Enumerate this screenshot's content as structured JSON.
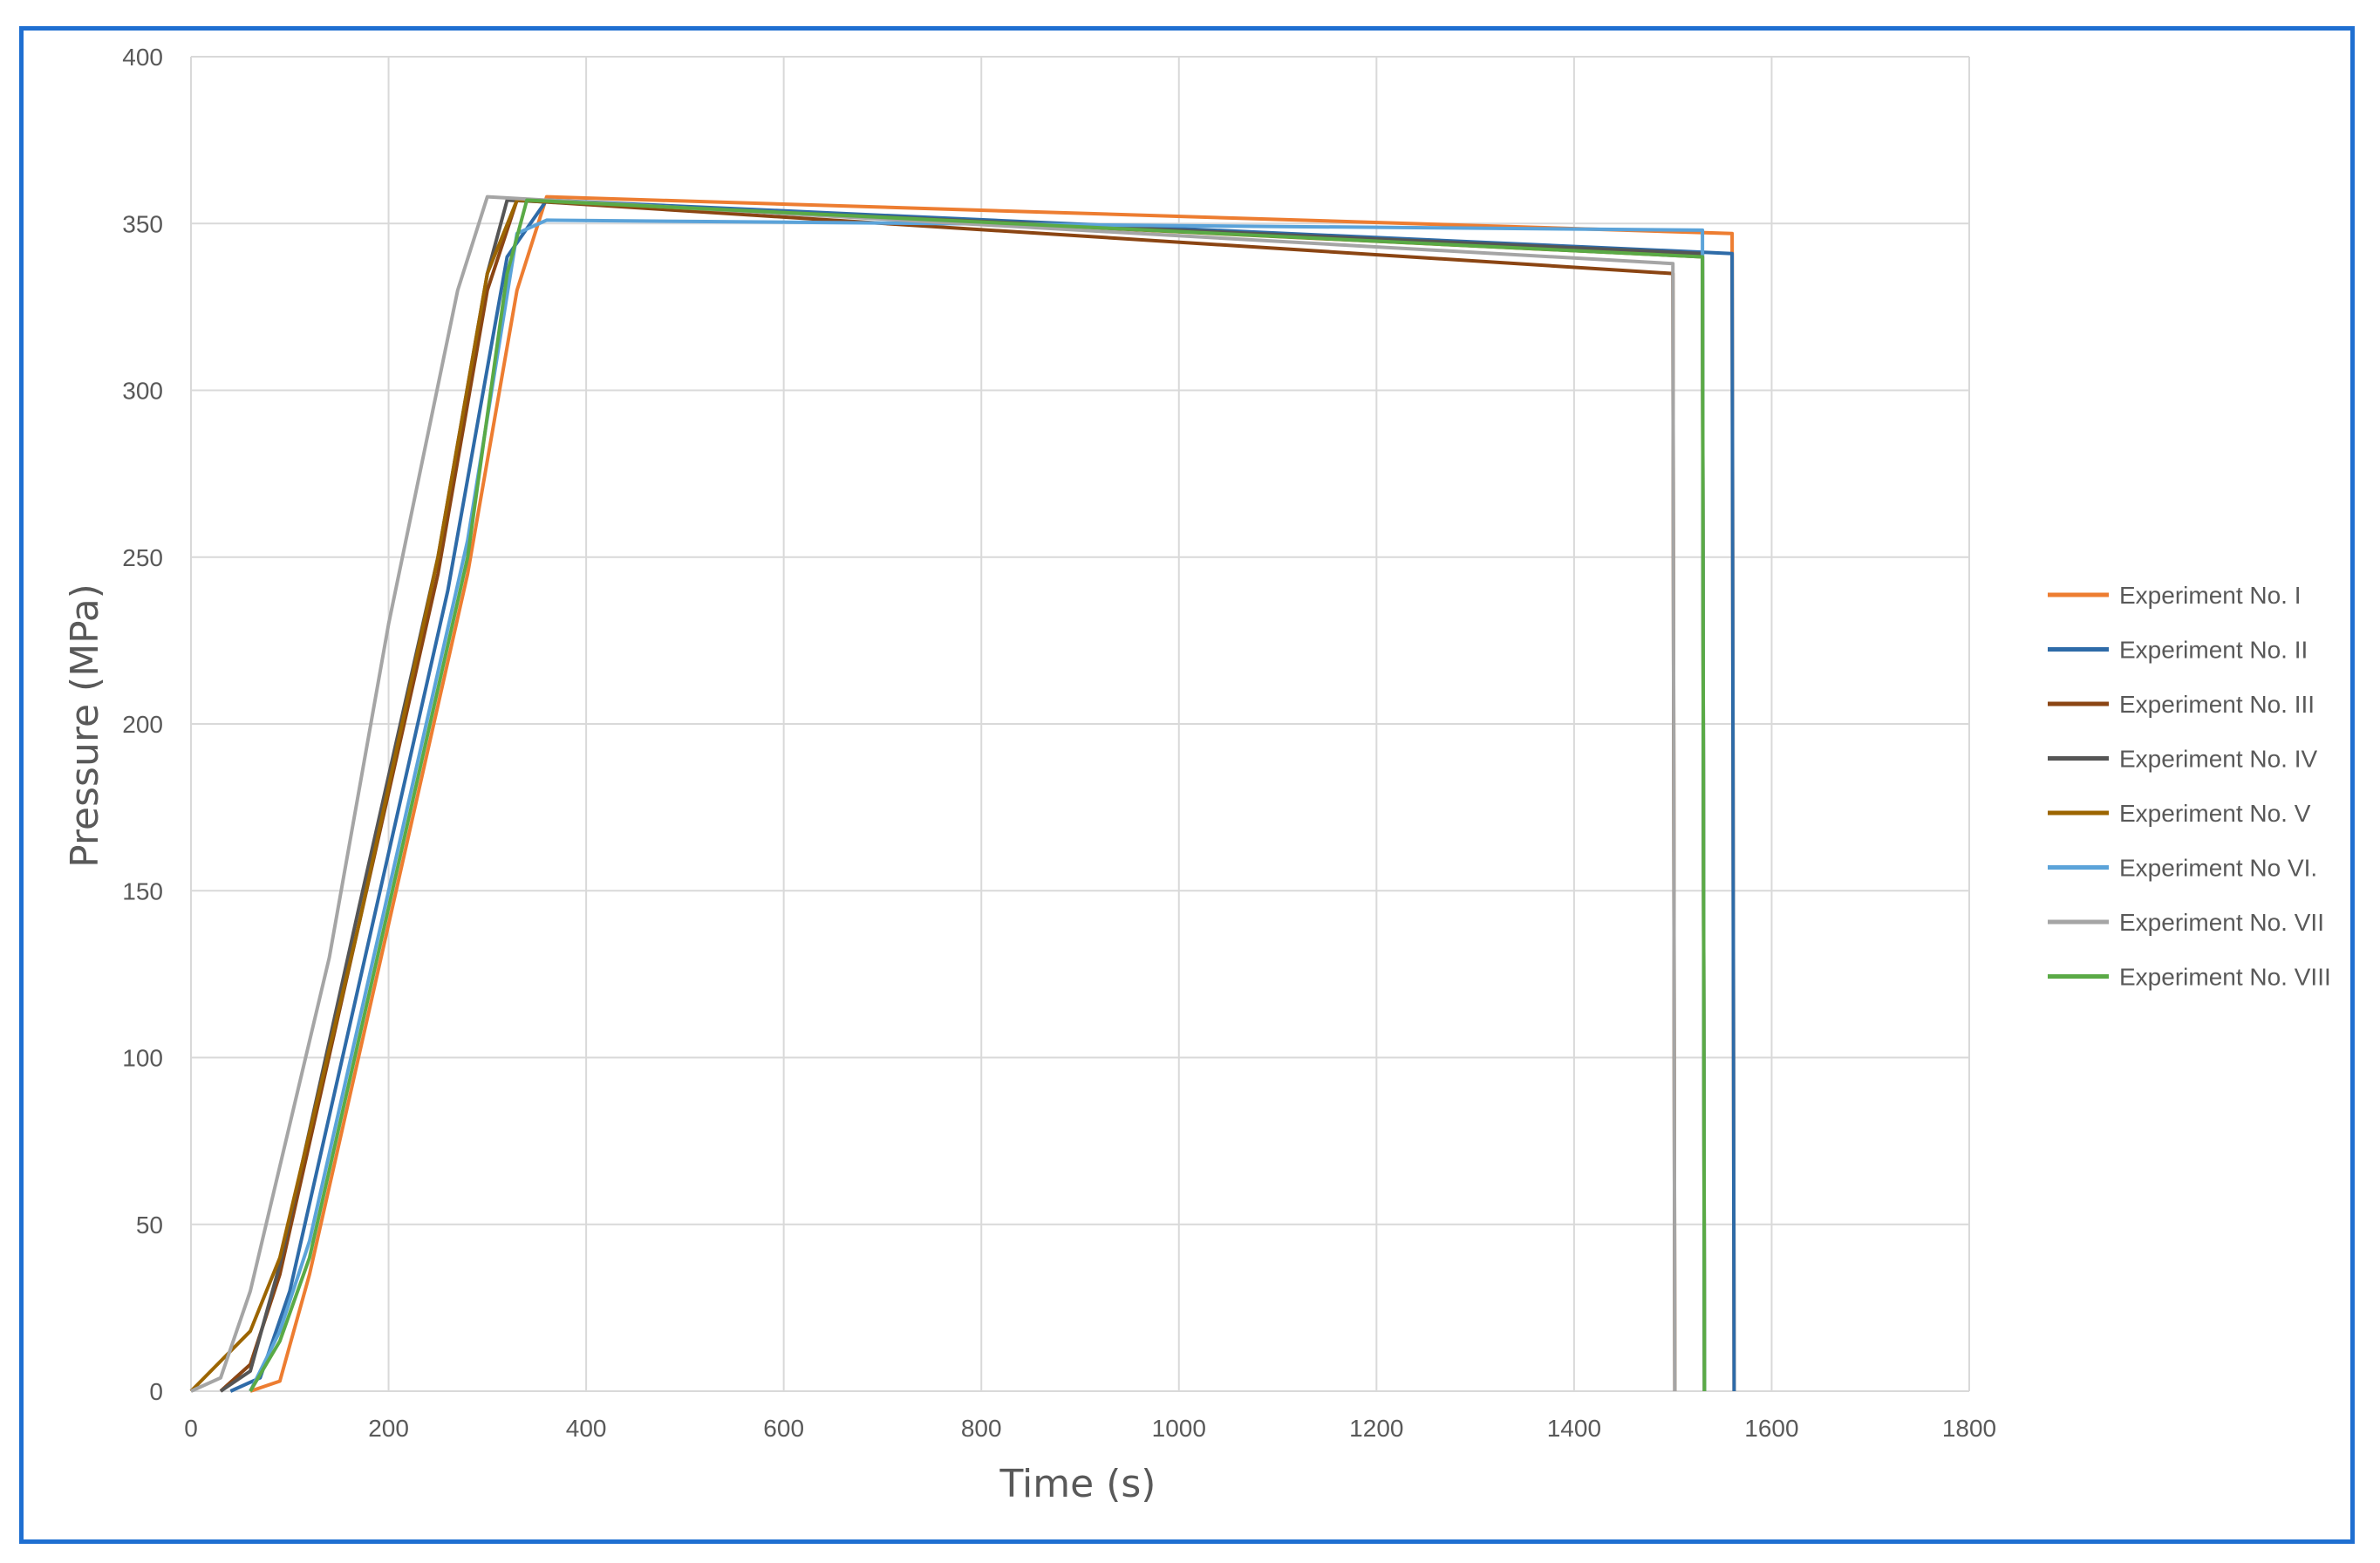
{
  "chart_data": {
    "type": "line",
    "xlabel": "Time (s)",
    "ylabel": "Pressure (MPa)",
    "xlim": [
      0,
      1800
    ],
    "ylim": [
      0,
      400
    ],
    "x_ticks": [
      "0",
      "200",
      "400",
      "600",
      "800",
      "1000",
      "1200",
      "1400",
      "1600",
      "1800"
    ],
    "y_ticks": [
      "0",
      "50",
      "100",
      "150",
      "200",
      "250",
      "300",
      "350",
      "400"
    ],
    "grid": true,
    "legend_position": "right",
    "series": [
      {
        "name": "Experiment No. I",
        "color": "#ed7d31",
        "points": [
          [
            60,
            0
          ],
          [
            90,
            3
          ],
          [
            120,
            35
          ],
          [
            200,
            140
          ],
          [
            280,
            245
          ],
          [
            330,
            330
          ],
          [
            360,
            358
          ],
          [
            1560,
            347
          ],
          [
            1562,
            0
          ]
        ]
      },
      {
        "name": "Experiment No. II",
        "color": "#2e6ba8",
        "points": [
          [
            40,
            0
          ],
          [
            70,
            4
          ],
          [
            100,
            30
          ],
          [
            180,
            135
          ],
          [
            260,
            240
          ],
          [
            320,
            340
          ],
          [
            360,
            357
          ],
          [
            1560,
            341
          ],
          [
            1562,
            0
          ]
        ]
      },
      {
        "name": "Experiment No. III",
        "color": "#8b4513",
        "points": [
          [
            30,
            0
          ],
          [
            60,
            8
          ],
          [
            90,
            35
          ],
          [
            170,
            140
          ],
          [
            250,
            245
          ],
          [
            300,
            330
          ],
          [
            330,
            357
          ],
          [
            1500,
            335
          ],
          [
            1502,
            0
          ]
        ]
      },
      {
        "name": "Experiment No. IV",
        "color": "#555555",
        "points": [
          [
            30,
            0
          ],
          [
            60,
            6
          ],
          [
            90,
            38
          ],
          [
            170,
            145
          ],
          [
            250,
            250
          ],
          [
            300,
            335
          ],
          [
            320,
            357
          ],
          [
            1530,
            341
          ],
          [
            1532,
            0
          ]
        ]
      },
      {
        "name": "Experiment No. V",
        "color": "#9c6500",
        "points": [
          [
            0,
            0
          ],
          [
            60,
            18
          ],
          [
            90,
            40
          ],
          [
            170,
            140
          ],
          [
            250,
            250
          ],
          [
            300,
            335
          ],
          [
            330,
            357
          ],
          [
            1530,
            340
          ],
          [
            1532,
            0
          ]
        ]
      },
      {
        "name": "Experiment No VI.",
        "color": "#5ba3d9",
        "points": [
          [
            60,
            0
          ],
          [
            90,
            18
          ],
          [
            120,
            45
          ],
          [
            200,
            150
          ],
          [
            280,
            255
          ],
          [
            330,
            347
          ],
          [
            360,
            351
          ],
          [
            1530,
            348
          ],
          [
            1532,
            0
          ]
        ]
      },
      {
        "name": "Experiment No. VII",
        "color": "#a5a5a5",
        "points": [
          [
            0,
            0
          ],
          [
            30,
            4
          ],
          [
            60,
            30
          ],
          [
            140,
            130
          ],
          [
            200,
            230
          ],
          [
            270,
            330
          ],
          [
            300,
            358
          ],
          [
            1500,
            338
          ],
          [
            1502,
            0
          ]
        ]
      },
      {
        "name": "Experiment No. VIII",
        "color": "#5aaa46",
        "points": [
          [
            60,
            0
          ],
          [
            90,
            15
          ],
          [
            120,
            40
          ],
          [
            200,
            145
          ],
          [
            280,
            250
          ],
          [
            320,
            335
          ],
          [
            340,
            357
          ],
          [
            1530,
            340
          ],
          [
            1532,
            0
          ]
        ]
      }
    ]
  }
}
